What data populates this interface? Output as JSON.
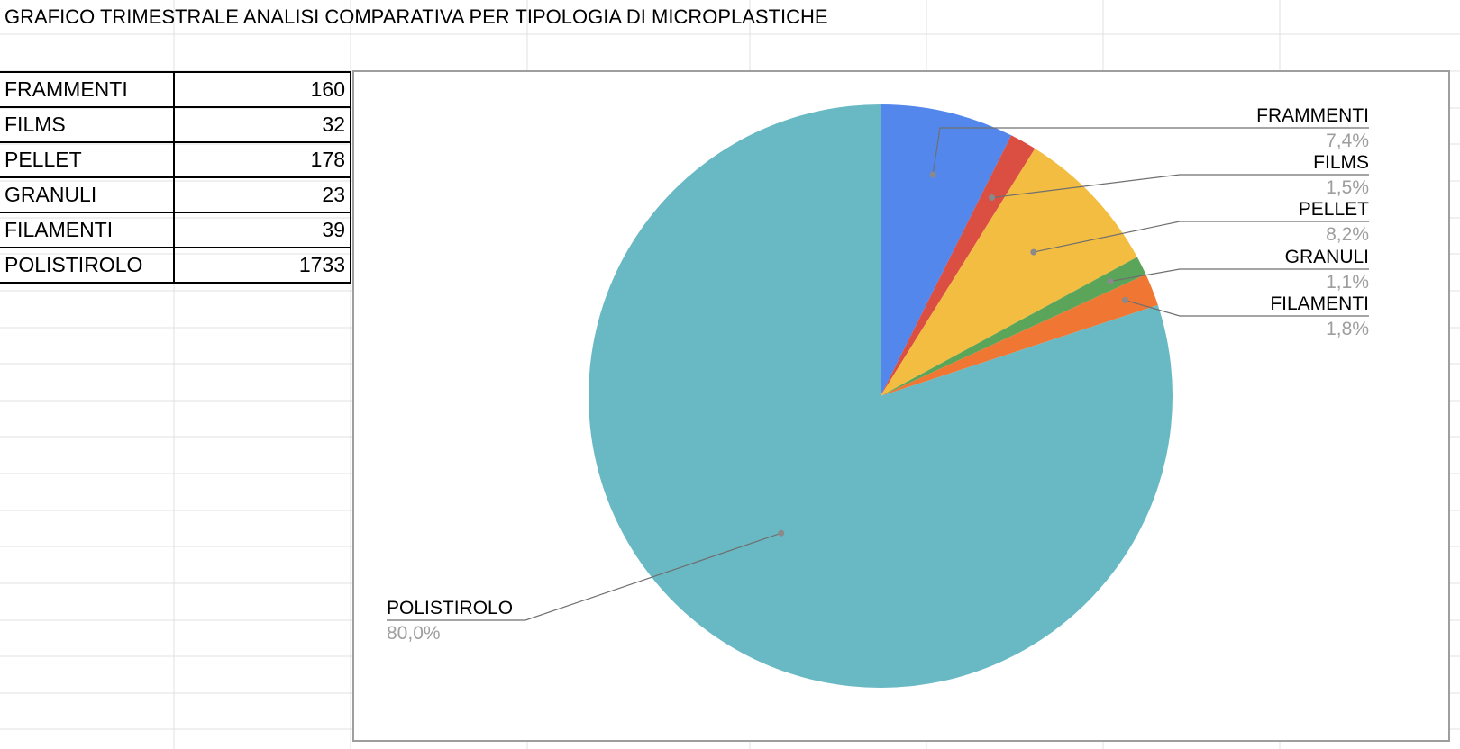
{
  "sheet": {
    "title": "GRAFICO TRIMESTRALE ANALISI COMPARATIVA PER TIPOLOGIA DI MICROPLASTICHE"
  },
  "table": {
    "rows": [
      {
        "label": "FRAMMENTI",
        "value": "160"
      },
      {
        "label": "FILMS",
        "value": "32"
      },
      {
        "label": "PELLET",
        "value": "178"
      },
      {
        "label": "GRANULI",
        "value": "23"
      },
      {
        "label": "FILAMENTI",
        "value": "39"
      },
      {
        "label": "POLISTIROLO",
        "value": "1733"
      }
    ]
  },
  "chart_data": {
    "type": "pie",
    "categories": [
      "FRAMMENTI",
      "FILMS",
      "PELLET",
      "GRANULI",
      "FILAMENTI",
      "POLISTIROLO"
    ],
    "values": [
      160,
      32,
      178,
      23,
      39,
      1733
    ],
    "percent_labels": [
      "7,4%",
      "1,5%",
      "8,2%",
      "1,1%",
      "1,8%",
      "80,0%"
    ],
    "colors": [
      "#5387ec",
      "#db4f43",
      "#f2bd41",
      "#5aa55a",
      "#ef7733",
      "#69b9c4"
    ],
    "legend": "none",
    "label_color": "#000000",
    "percent_color": "#9e9e9e"
  }
}
